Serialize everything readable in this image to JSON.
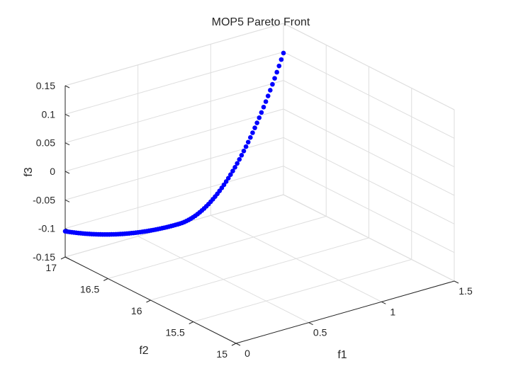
{
  "chart_data": {
    "type": "scatter",
    "title": "MOP5 Pareto Front",
    "xlabel": "f1",
    "ylabel": "f2",
    "zlabel": "f3",
    "xlim": [
      0,
      1.5
    ],
    "ylim": [
      15,
      17
    ],
    "zlim": [
      -0.15,
      0.15
    ],
    "xticks": [
      0,
      0.5,
      1,
      1.5
    ],
    "xtick_labels": [
      "0",
      "0.5",
      "1",
      "1.5"
    ],
    "yticks": [
      15,
      15.5,
      16,
      16.5,
      17
    ],
    "ytick_labels": [
      "15",
      "15.5",
      "16",
      "16.5",
      "17"
    ],
    "zticks": [
      -0.15,
      -0.1,
      -0.05,
      0,
      0.05,
      0.1,
      0.15
    ],
    "ztick_labels": [
      "-0.15",
      "-0.1",
      "-0.05",
      "0",
      "0.05",
      "0.1",
      "0.15"
    ],
    "grid": true,
    "marker_color": "#0000ff",
    "f1_range": [
      0,
      1.5
    ],
    "f2_value": 17,
    "f3_range": [
      -0.149,
      0.098
    ],
    "n_points": 100
  }
}
